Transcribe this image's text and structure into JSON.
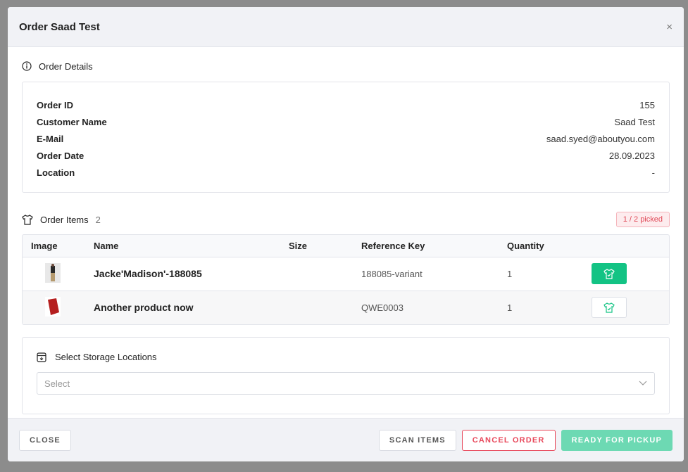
{
  "modal": {
    "title": "Order Saad Test",
    "close_icon": "×"
  },
  "details": {
    "heading": "Order Details",
    "rows": [
      {
        "label": "Order ID",
        "value": "155"
      },
      {
        "label": "Customer Name",
        "value": "Saad Test"
      },
      {
        "label": "E-Mail",
        "value": "saad.syed@aboutyou.com"
      },
      {
        "label": "Order Date",
        "value": "28.09.2023"
      },
      {
        "label": "Location",
        "value": "-"
      }
    ]
  },
  "items": {
    "heading": "Order Items",
    "count": "2",
    "picked_badge": "1 / 2 picked",
    "columns": [
      "Image",
      "Name",
      "Size",
      "Reference Key",
      "Quantity"
    ],
    "rows": [
      {
        "name": "Jacke'Madison'-188085",
        "size": "",
        "ref": "188085-variant",
        "qty": "1",
        "picked": true
      },
      {
        "name": "Another product now",
        "size": "",
        "ref": "QWE0003",
        "qty": "1",
        "picked": false
      }
    ]
  },
  "storage": {
    "heading": "Select Storage Locations",
    "placeholder": "Select"
  },
  "footer": {
    "close": "CLOSE",
    "scan": "SCAN ITEMS",
    "cancel": "CANCEL ORDER",
    "ready": "READY FOR PICKUP"
  },
  "colors": {
    "accent": "#13c384",
    "danger": "#e8475a"
  }
}
